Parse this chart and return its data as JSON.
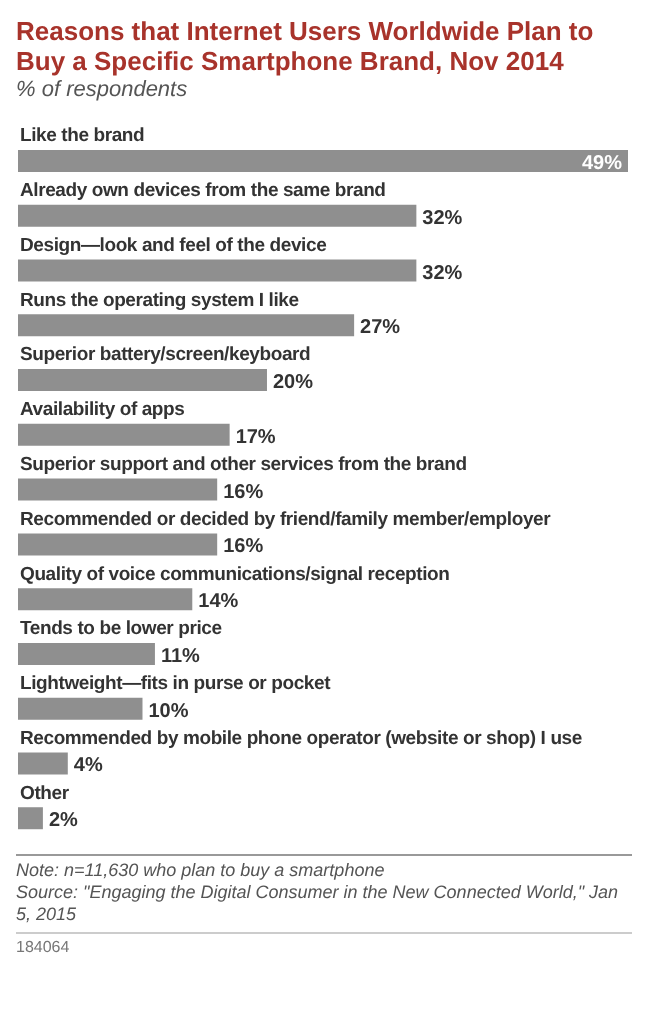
{
  "chart_data": {
    "type": "bar",
    "orientation": "horizontal",
    "title": "Reasons that Internet Users Worldwide Plan to Buy a Specific Smartphone Brand, Nov 2014",
    "subtitle": "% of respondents",
    "categories": [
      "Like the brand",
      "Already own devices from the same brand",
      "Design—look and feel of the device",
      "Runs the operating system I like",
      "Superior battery/screen/keyboard",
      "Availability of apps",
      "Superior support and other services from the brand",
      "Recommended or decided by friend/family member/employer",
      "Quality of voice communications/signal reception",
      "Tends to be lower price",
      "Lightweight—fits in purse or pocket",
      "Recommended by mobile phone operator (website or shop) I use",
      "Other"
    ],
    "values": [
      49,
      32,
      32,
      27,
      20,
      17,
      16,
      16,
      14,
      11,
      10,
      4,
      2
    ],
    "value_labels": [
      "49%",
      "32%",
      "32%",
      "27%",
      "20%",
      "17%",
      "16%",
      "16%",
      "14%",
      "11%",
      "10%",
      "4%",
      "2%"
    ],
    "color": "#8f8f8f",
    "xlim": [
      0,
      49
    ],
    "grid": false,
    "tick_labels": false,
    "annotations": [
      "Note: n=11,630 who plan to buy a smartphone",
      "Source: \"Engaging the Digital Consumer in the New Connected World,\" Jan 5, 2015",
      "184064"
    ]
  }
}
